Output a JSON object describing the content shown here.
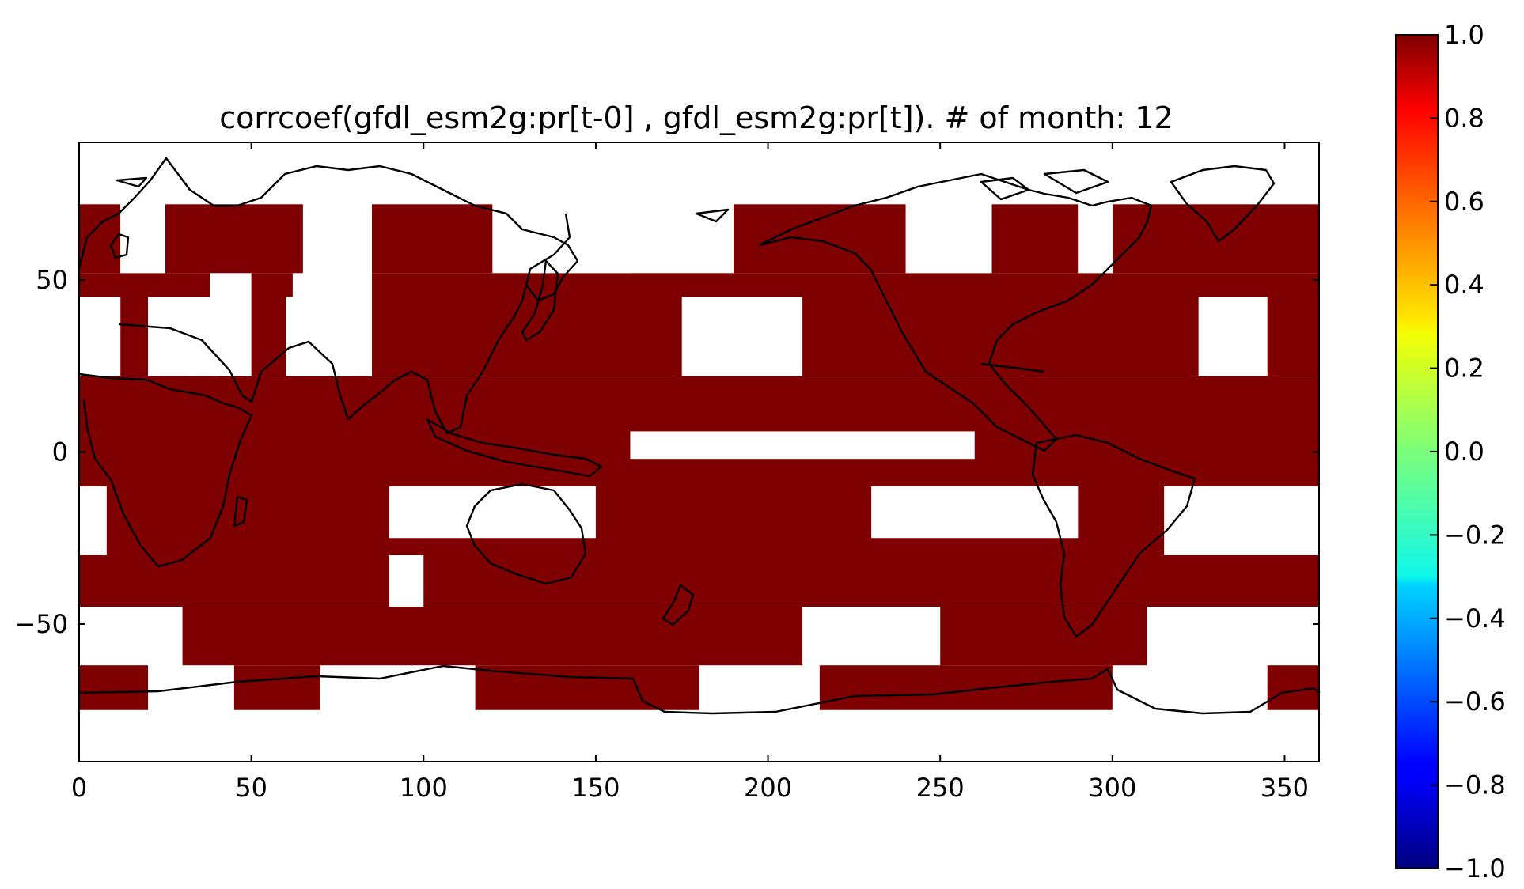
{
  "chart_data": {
    "type": "heatmap",
    "title": "corrcoef(gfdl_esm2g:pr[t-0] , gfdl_esm2g:pr[t]). # of month: 12",
    "xlabel": "",
    "ylabel": "",
    "xlim": [
      0,
      360
    ],
    "ylim": [
      -90,
      90
    ],
    "x_ticks": [
      0,
      50,
      100,
      150,
      200,
      250,
      300,
      350
    ],
    "x_tick_labels": [
      "0",
      "50",
      "100",
      "150",
      "200",
      "250",
      "300",
      "350"
    ],
    "y_ticks": [
      50,
      0,
      -50
    ],
    "y_tick_labels": [
      "50",
      "0",
      "−50"
    ],
    "colorbar": {
      "colormap": "jet",
      "vmin": -1.0,
      "vmax": 1.0,
      "ticks": [
        1.0,
        0.8,
        0.6,
        0.4,
        0.2,
        0.0,
        -0.2,
        -0.4,
        -0.6,
        -0.8,
        -1.0
      ],
      "tick_labels": [
        "1.0",
        "0.8",
        "0.6",
        "0.4",
        "0.2",
        "0.0",
        "−0.2",
        "−0.4",
        "−0.6",
        "−0.8",
        "−1.0"
      ],
      "placement": "right"
    },
    "cell_value": 1.0,
    "cell_color": "#7f0000",
    "missing_color": "#ffffff",
    "coastline_color": "#000000",
    "valid_bands": [
      {
        "lat": [
          52,
          72
        ],
        "lon": [
          [
            0,
            12
          ],
          [
            25,
            65
          ],
          [
            85,
            120
          ],
          [
            190,
            240
          ],
          [
            265,
            290
          ],
          [
            300,
            360
          ]
        ]
      },
      {
        "lat": [
          22,
          52
        ],
        "lon": [
          [
            0,
            38
          ],
          [
            50,
            62
          ],
          [
            85,
            360
          ]
        ]
      },
      {
        "lat": [
          -10,
          22
        ],
        "lon": [
          [
            0,
            360
          ]
        ]
      },
      {
        "lat": [
          -30,
          -10
        ],
        "lon": [
          [
            8,
            360
          ]
        ]
      },
      {
        "lat": [
          -45,
          -30
        ],
        "lon": [
          [
            0,
            360
          ]
        ]
      },
      {
        "lat": [
          -62,
          -45
        ],
        "lon": [
          [
            30,
            210
          ],
          [
            250,
            310
          ]
        ]
      },
      {
        "lat": [
          -75,
          -62
        ],
        "lon": [
          [
            0,
            20
          ],
          [
            45,
            70
          ],
          [
            115,
            180
          ],
          [
            215,
            300
          ],
          [
            345,
            360
          ]
        ]
      }
    ],
    "invalid_patches": [
      {
        "lat": [
          52,
          72
        ],
        "lon": [
          [
            12,
            25
          ],
          [
            65,
            85
          ],
          [
            130,
            160
          ],
          [
            240,
            265
          ],
          [
            290,
            300
          ]
        ]
      },
      {
        "lat": [
          22,
          45
        ],
        "lon": [
          [
            0,
            12
          ],
          [
            20,
            40
          ],
          [
            60,
            80
          ],
          [
            175,
            210
          ],
          [
            325,
            345
          ]
        ]
      },
      {
        "lat": [
          -2,
          6
        ],
        "lon": [
          [
            160,
            260
          ]
        ]
      },
      {
        "lat": [
          -25,
          -10
        ],
        "lon": [
          [
            90,
            150
          ]
        ]
      },
      {
        "lat": [
          -25,
          -10
        ],
        "lon": [
          [
            230,
            290
          ]
        ]
      },
      {
        "lat": [
          -10,
          -30
        ],
        "lon": [
          [
            315,
            360
          ]
        ]
      },
      {
        "lat": [
          -45,
          -30
        ],
        "lon": [
          [
            90,
            100
          ]
        ]
      }
    ]
  }
}
